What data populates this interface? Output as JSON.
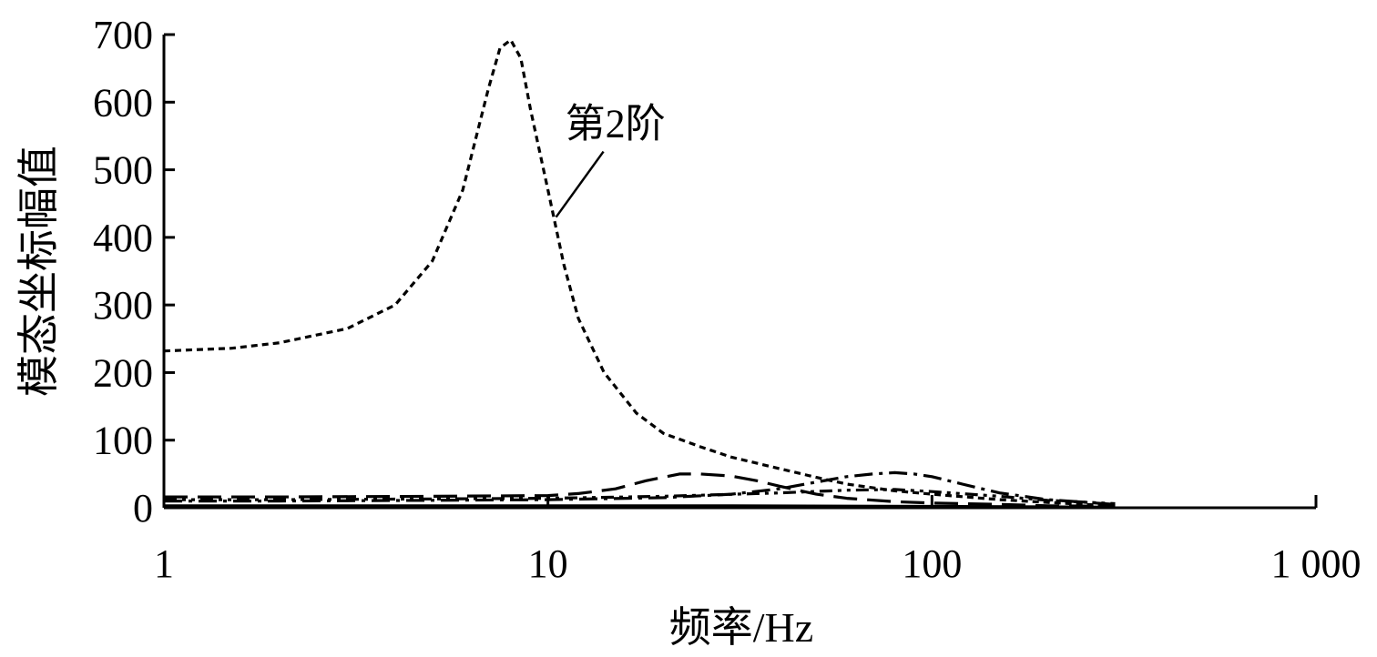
{
  "chart_data": {
    "type": "line",
    "title": "",
    "xlabel": "频率/Hz",
    "ylabel": "模态坐标幅值",
    "xscale": "log",
    "xlim": [
      1,
      1000
    ],
    "ylim": [
      0,
      700
    ],
    "xticks": [
      1,
      10,
      100,
      1000
    ],
    "xtick_labels": [
      "1",
      "10",
      "100",
      "1 000"
    ],
    "yticks": [
      0,
      100,
      200,
      300,
      400,
      500,
      600,
      700
    ],
    "ytick_labels": [
      "0",
      "100",
      "200",
      "300",
      "400",
      "500",
      "600",
      "700"
    ],
    "grid": false,
    "series": [
      {
        "name": "第2阶",
        "color": "#000000",
        "dash": "short-dash",
        "x": [
          1,
          1.5,
          2,
          3,
          4,
          5,
          6,
          7,
          7.5,
          8,
          8.5,
          9,
          10,
          11,
          12,
          14,
          17,
          20,
          25,
          30,
          40,
          50,
          60,
          80,
          100,
          150,
          200,
          250,
          300
        ],
        "y": [
          232,
          236,
          244,
          265,
          300,
          365,
          470,
          620,
          680,
          692,
          665,
          590,
          470,
          360,
          280,
          200,
          140,
          110,
          90,
          75,
          58,
          45,
          35,
          25,
          20,
          12,
          8,
          5,
          3
        ]
      },
      {
        "color": "#000000",
        "dash": "long-dash",
        "x": [
          1,
          2,
          5,
          10,
          12,
          15,
          18,
          22,
          25,
          30,
          35,
          40,
          50,
          60,
          80,
          100,
          150,
          200,
          300
        ],
        "y": [
          16,
          16,
          17,
          18,
          21,
          28,
          40,
          50,
          50,
          47,
          40,
          32,
          20,
          14,
          9,
          7,
          5,
          3,
          2
        ]
      },
      {
        "color": "#000000",
        "dash": "dash-dot",
        "x": [
          1,
          2,
          5,
          10,
          20,
          30,
          40,
          50,
          60,
          70,
          80,
          90,
          100,
          120,
          150,
          200,
          300
        ],
        "y": [
          10,
          10,
          11,
          12,
          15,
          20,
          28,
          38,
          46,
          50,
          52,
          50,
          46,
          35,
          22,
          12,
          5
        ]
      },
      {
        "color": "#000000",
        "dash": "dash-dot-dot",
        "x": [
          1,
          2,
          5,
          10,
          20,
          40,
          60,
          80,
          100,
          150,
          200,
          300
        ],
        "y": [
          12,
          12,
          13,
          14,
          17,
          22,
          26,
          27,
          24,
          17,
          11,
          6
        ]
      },
      {
        "color": "#000000",
        "dash": "solid",
        "x": [
          1,
          10,
          30,
          100,
          300
        ],
        "y": [
          3,
          3,
          3,
          2,
          1
        ]
      }
    ],
    "annotations": [
      {
        "text": "第2阶",
        "points_to_series": "第2阶",
        "x": 10.5,
        "y": 430
      }
    ]
  }
}
